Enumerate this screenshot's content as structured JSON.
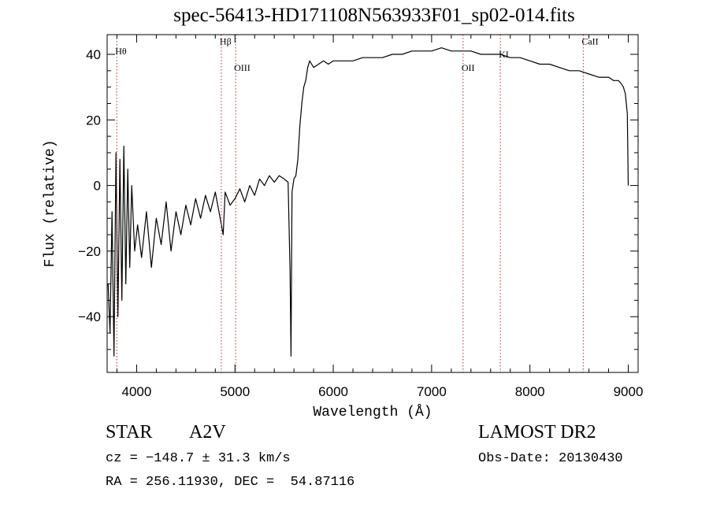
{
  "title": "spec-56413-HD171108N563933F01_sp02-014.fits",
  "info": {
    "class": "STAR",
    "subclass": "A2V",
    "survey": "LAMOST DR2",
    "cz": "cz = −148.7 ± 31.3 km/s",
    "obs_date": "Obs-Date: 20130430",
    "radec": "RA = 256.11930, DEC =  54.87116"
  },
  "chart_data": {
    "type": "line",
    "title": "spec-56413-HD171108N563933F01_sp02-014.fits",
    "xlabel": "Wavelength (Å)",
    "ylabel": "Flux (relative)",
    "xlim": [
      3700,
      9100
    ],
    "ylim": [
      -57,
      46
    ],
    "xticks": [
      4000,
      5000,
      6000,
      7000,
      8000,
      9000
    ],
    "yticks": [
      -40,
      -20,
      0,
      20,
      40
    ],
    "xtick_labels": [
      "4000",
      "5000",
      "6000",
      "7000",
      "8000",
      "9000"
    ],
    "ytick_labels": [
      "−40",
      "−20",
      "0",
      "20",
      "40"
    ],
    "grid": false,
    "lines": [
      {
        "label": "Hθ",
        "wavelength": 3798,
        "label_y": 40
      },
      {
        "label": "Hβ",
        "wavelength": 4861,
        "label_y": 43
      },
      {
        "label": "OIII",
        "wavelength": 5007,
        "label_y": 35
      },
      {
        "label": "OII",
        "wavelength": 7320,
        "label_y": 35
      },
      {
        "label": "KI",
        "wavelength": 7699,
        "label_y": 39
      },
      {
        "label": "CaII",
        "wavelength": 8542,
        "label_y": 43
      }
    ],
    "series": [
      {
        "x": [
          3710,
          3730,
          3750,
          3770,
          3790,
          3810,
          3830,
          3850,
          3870,
          3890,
          3910,
          3930,
          3950,
          3980,
          4010,
          4050,
          4100,
          4150,
          4200,
          4250,
          4300,
          4350,
          4400,
          4450,
          4500,
          4550,
          4600,
          4650,
          4700,
          4750,
          4800,
          4850,
          4880,
          4900,
          4950,
          5000,
          5050,
          5100,
          5150,
          5200,
          5250,
          5300,
          5350,
          5400,
          5450,
          5500,
          5540,
          5560,
          5570,
          5580,
          5600,
          5620,
          5640,
          5660,
          5680,
          5700,
          5720,
          5740,
          5760,
          5780,
          5800,
          5850,
          5900,
          5950,
          6000,
          6100,
          6200,
          6300,
          6400,
          6500,
          6600,
          6700,
          6800,
          6900,
          7000,
          7100,
          7200,
          7300,
          7400,
          7500,
          7600,
          7700,
          7800,
          7900,
          8000,
          8100,
          8200,
          8300,
          8400,
          8500,
          8600,
          8700,
          8800,
          8850,
          8900,
          8930,
          8950,
          8970,
          8990,
          9000
        ],
        "y": [
          -30,
          -45,
          -8,
          -52,
          10,
          -40,
          8,
          -35,
          12,
          -30,
          5,
          -25,
          0,
          -20,
          -12,
          -22,
          -8,
          -25,
          -10,
          -18,
          -5,
          -20,
          -8,
          -15,
          -6,
          -12,
          -4,
          -10,
          -3,
          -8,
          -2,
          -10,
          -15,
          -2,
          -6,
          -4,
          -1,
          -5,
          0,
          -3,
          2,
          0,
          3,
          1,
          3,
          2,
          1,
          -26,
          -52,
          -2,
          2,
          3,
          8,
          18,
          25,
          30,
          32,
          36,
          38,
          37,
          36,
          37,
          38,
          37,
          38,
          38,
          38,
          39,
          39,
          39,
          40,
          40,
          41,
          41,
          41,
          42,
          41,
          41,
          41,
          40,
          40,
          40,
          39,
          39,
          38,
          37,
          37,
          36,
          35,
          35,
          34,
          33,
          33,
          32,
          32,
          31,
          30,
          28,
          22,
          0
        ]
      }
    ]
  }
}
